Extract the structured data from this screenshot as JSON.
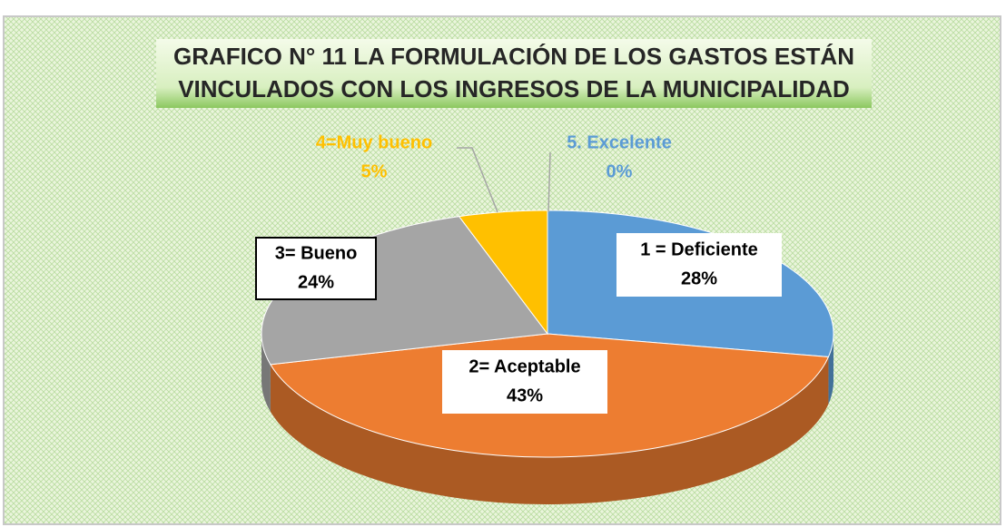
{
  "chart_data": {
    "type": "pie3d",
    "title": [
      "GRAFICO N° 11  LA FORMULACIÓN DE LOS GASTOS ESTÁN",
      "VINCULADOS CON LOS INGRESOS DE LA MUNICIPALIDAD"
    ],
    "categories": [
      "1 = Deficiente",
      "2= Aceptable",
      "3= Bueno",
      "4=Muy bueno",
      "5. Excelente"
    ],
    "values": [
      28,
      43,
      24,
      5,
      0
    ],
    "value_labels": [
      "28%",
      "43%",
      "24%",
      "5%",
      "0%"
    ],
    "colors": [
      "#5b9bd5",
      "#ed7d31",
      "#a5a5a5",
      "#ffc000",
      "#5b9bd5"
    ],
    "start_angle": "top",
    "direction": "clockwise"
  }
}
